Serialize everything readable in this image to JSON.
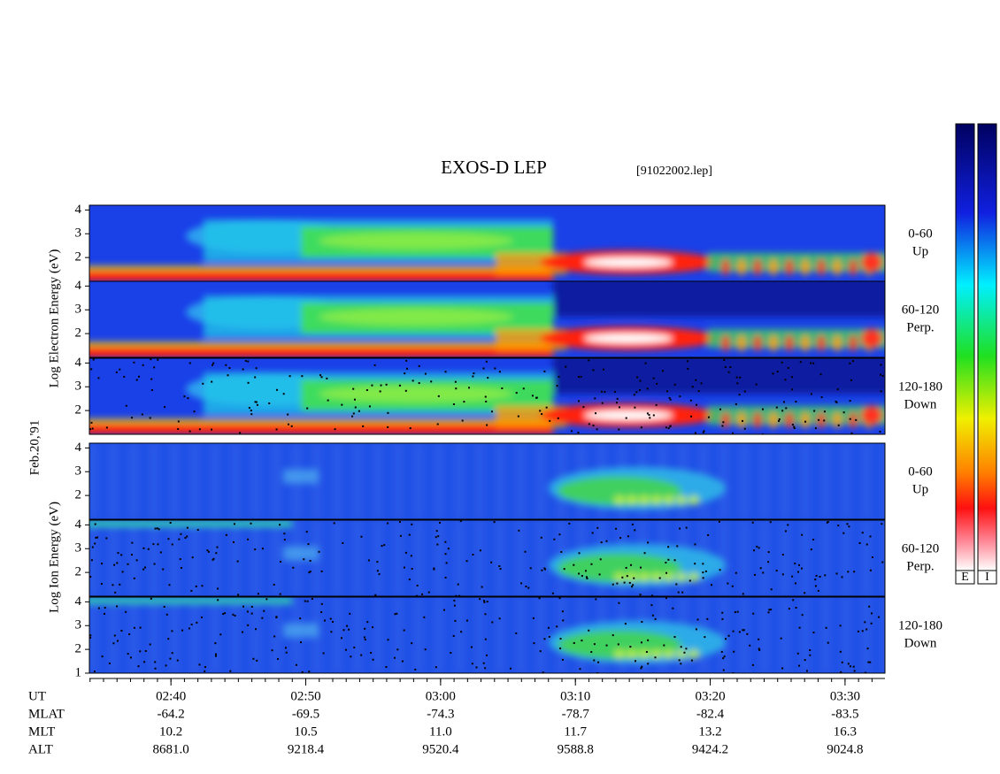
{
  "title": "EXOS-D LEP",
  "file": "[91022002.lep]",
  "date": "Feb.20,'91",
  "electron_axis_label": "Log Electron Energy (eV)",
  "ion_axis_label": "Log Ion Energy (eV)",
  "panels": [
    {
      "species": "electron",
      "angle": "0-60",
      "direction": "Up",
      "ylim": [
        1,
        4.2
      ],
      "yticks": [
        2,
        3,
        4
      ]
    },
    {
      "species": "electron",
      "angle": "60-120",
      "direction": "Perp.",
      "ylim": [
        1,
        4.2
      ],
      "yticks": [
        2,
        3,
        4
      ]
    },
    {
      "species": "electron",
      "angle": "120-180",
      "direction": "Down",
      "ylim": [
        1,
        4.2
      ],
      "yticks": [
        2,
        3,
        4
      ]
    },
    {
      "species": "ion",
      "angle": "0-60",
      "direction": "Up",
      "ylim": [
        1,
        4.2
      ],
      "yticks": [
        2,
        3,
        4
      ]
    },
    {
      "species": "ion",
      "angle": "60-120",
      "direction": "Perp.",
      "ylim": [
        1,
        4.2
      ],
      "yticks": [
        2,
        3,
        4
      ]
    },
    {
      "species": "ion",
      "angle": "120-180",
      "direction": "Down",
      "ylim": [
        1,
        4.2
      ],
      "yticks": [
        1,
        2,
        3,
        4
      ]
    }
  ],
  "x_axis": {
    "label": "UT",
    "xlim": [
      153.95,
      212.96
    ],
    "minor_step": 1,
    "xticks": [
      {
        "value": 160,
        "label": "02:40"
      },
      {
        "value": 170,
        "label": "02:50"
      },
      {
        "value": 180,
        "label": "03:00"
      },
      {
        "value": 190,
        "label": "03:10"
      },
      {
        "value": 200,
        "label": "03:20"
      },
      {
        "value": 210,
        "label": "03:30"
      }
    ]
  },
  "ephemeris": [
    {
      "label": "MLAT",
      "values": [
        "-64.2",
        "-69.5",
        "-74.3",
        "-78.7",
        "-82.4",
        "-83.5"
      ]
    },
    {
      "label": "MLT",
      "values": [
        "10.2",
        "10.5",
        "11.0",
        "11.7",
        "13.2",
        "16.3"
      ]
    },
    {
      "label": "ALT",
      "values": [
        "8681.0",
        "9218.4",
        "9520.4",
        "9588.8",
        "9424.2",
        "9024.8"
      ]
    }
  ],
  "colorbars": [
    {
      "label": "E"
    },
    {
      "label": "I"
    }
  ]
}
